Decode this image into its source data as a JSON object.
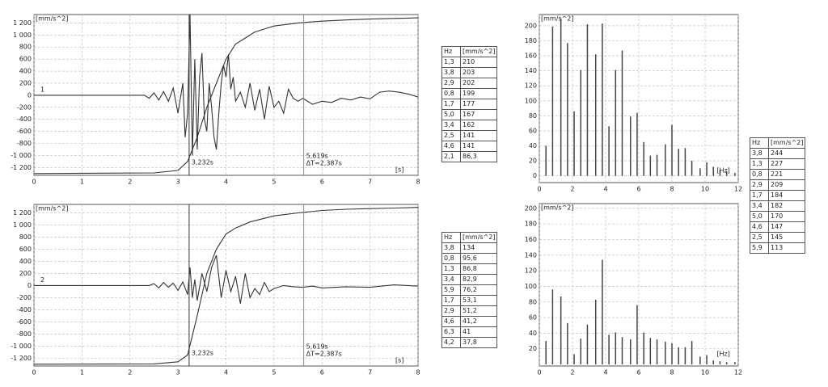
{
  "chart_data": [
    {
      "type": "line",
      "y_unit": "[mm/s^2]",
      "x_unit": "[s]",
      "channel_label": "1",
      "xlim": [
        0,
        8
      ],
      "xticks": [
        0,
        1,
        2,
        3,
        4,
        5,
        6,
        7,
        8
      ],
      "ylim": [
        -1330,
        1340
      ],
      "yticks": [
        {
          "value": -1200,
          "label": "-1 200"
        },
        {
          "value": -1000,
          "label": "-1 000"
        },
        -800,
        -600,
        -400,
        -200,
        0,
        200,
        400,
        600,
        800,
        {
          "value": 1000,
          "label": "1 000"
        },
        {
          "value": 1200,
          "label": "1 200"
        }
      ],
      "grid": true,
      "cursors": [
        3.232,
        5.619
      ],
      "cursor_labels": [
        "3,232s",
        "5,619s",
        "ΔT=2,387s"
      ],
      "series": [
        {
          "color": "#333333",
          "x": [
            0,
            2.3,
            2.4,
            2.5,
            2.6,
            2.7,
            2.8,
            2.9,
            3.0,
            3.1,
            3.15,
            3.2,
            3.25,
            3.3,
            3.35,
            3.4,
            3.45,
            3.5,
            3.55,
            3.6,
            3.65,
            3.7,
            3.75,
            3.8,
            3.85,
            3.9,
            3.95,
            4.0,
            4.05,
            4.1,
            4.15,
            4.2,
            4.3,
            4.4,
            4.5,
            4.6,
            4.7,
            4.8,
            4.9,
            5.0,
            5.1,
            5.2,
            5.3,
            5.4,
            5.5,
            5.6,
            5.8,
            6.0,
            6.2,
            6.4,
            6.6,
            6.8,
            7.0,
            7.2,
            7.4,
            7.6,
            7.8,
            8.0
          ],
          "values": [
            0,
            0,
            -50,
            40,
            -80,
            60,
            -100,
            120,
            -300,
            200,
            -700,
            -300,
            1340,
            -1000,
            600,
            -900,
            300,
            700,
            -400,
            -600,
            200,
            -200,
            -700,
            -900,
            -300,
            200,
            500,
            300,
            680,
            100,
            300,
            -100,
            50,
            -200,
            200,
            -250,
            100,
            -400,
            150,
            -200,
            -100,
            -300,
            100,
            -50,
            -100,
            -50,
            -150,
            -100,
            -120,
            -50,
            -80,
            -30,
            -60,
            50,
            70,
            50,
            20,
            -30
          ]
        },
        {
          "color": "#333333",
          "x": [
            0,
            2.5,
            3.0,
            3.2,
            3.4,
            3.6,
            3.8,
            4.0,
            4.2,
            4.4,
            4.6,
            4.8,
            5.0,
            5.5,
            6.0,
            6.5,
            7.0,
            7.5,
            8.0
          ],
          "values": [
            -1300,
            -1290,
            -1250,
            -1100,
            -700,
            -200,
            200,
            600,
            850,
            950,
            1050,
            1100,
            1150,
            1200,
            1230,
            1250,
            1265,
            1275,
            1285
          ]
        }
      ]
    },
    {
      "type": "line",
      "y_unit": "[mm/s^2]",
      "x_unit": "[s]",
      "channel_label": "2",
      "xlim": [
        0,
        8
      ],
      "xticks": [
        0,
        1,
        2,
        3,
        4,
        5,
        6,
        7,
        8
      ],
      "ylim": [
        -1330,
        1340
      ],
      "yticks": [
        {
          "value": -1200,
          "label": "-1 200"
        },
        {
          "value": -1000,
          "label": "-1 000"
        },
        -800,
        -600,
        -400,
        -200,
        0,
        200,
        400,
        600,
        800,
        {
          "value": 1000,
          "label": "1 000"
        },
        {
          "value": 1200,
          "label": "1 200"
        }
      ],
      "grid": true,
      "cursors": [
        3.232,
        5.619
      ],
      "cursor_labels": [
        "3,232s",
        "5,619s",
        "ΔT=2,387s"
      ],
      "series": [
        {
          "color": "#333333",
          "x": [
            0,
            2.4,
            2.5,
            2.6,
            2.7,
            2.8,
            2.9,
            3.0,
            3.1,
            3.2,
            3.25,
            3.3,
            3.35,
            3.4,
            3.5,
            3.6,
            3.7,
            3.8,
            3.9,
            4.0,
            4.1,
            4.2,
            4.3,
            4.4,
            4.5,
            4.6,
            4.7,
            4.8,
            4.9,
            5.0,
            5.2,
            5.4,
            5.6,
            5.8,
            6.0,
            6.5,
            7.0,
            7.5,
            8.0
          ],
          "values": [
            0,
            0,
            30,
            -40,
            50,
            -30,
            40,
            -80,
            60,
            -150,
            300,
            -200,
            100,
            -250,
            200,
            -100,
            300,
            500,
            -200,
            250,
            -100,
            150,
            -300,
            200,
            -200,
            -50,
            -150,
            50,
            -100,
            -50,
            0,
            -20,
            -30,
            -10,
            -40,
            -20,
            -30,
            10,
            -10
          ]
        },
        {
          "color": "#333333",
          "x": [
            0,
            2.5,
            3.0,
            3.2,
            3.4,
            3.6,
            3.8,
            4.0,
            4.2,
            4.5,
            5.0,
            5.5,
            6.0,
            6.5,
            7.0,
            7.5,
            8.0
          ],
          "values": [
            -1300,
            -1295,
            -1260,
            -1150,
            -500,
            200,
            600,
            850,
            950,
            1050,
            1150,
            1200,
            1240,
            1260,
            1270,
            1280,
            1290
          ]
        }
      ]
    },
    {
      "type": "bar",
      "y_unit": "[mm/s^2]",
      "x_unit": "[Hz]",
      "xlim": [
        0,
        12
      ],
      "xticks": [
        0,
        2,
        4,
        6,
        8,
        10,
        12
      ],
      "ylim": [
        -9,
        215
      ],
      "yticks": [
        0,
        20,
        40,
        60,
        80,
        100,
        120,
        140,
        160,
        180,
        200
      ],
      "grid": true,
      "color": "#444444",
      "x": [
        0.4,
        0.8,
        1.3,
        1.7,
        2.1,
        2.5,
        2.9,
        3.4,
        3.8,
        4.2,
        4.6,
        5.0,
        5.5,
        5.9,
        6.3,
        6.7,
        7.1,
        7.6,
        8.0,
        8.4,
        8.8,
        9.2,
        9.7,
        10.1,
        10.5,
        10.9,
        11.3,
        11.8
      ],
      "values": [
        40,
        199,
        210,
        177,
        86,
        141,
        202,
        162,
        203,
        66,
        141,
        167,
        79,
        84,
        45,
        27,
        28,
        42,
        68,
        36,
        37,
        20,
        10,
        18,
        12,
        8,
        6,
        4
      ]
    },
    {
      "type": "bar",
      "y_unit": "[mm/s^2]",
      "x_unit": "[Hz]",
      "xlim": [
        0,
        12
      ],
      "xticks": [
        0,
        2,
        4,
        6,
        8,
        10,
        12
      ],
      "ylim": [
        -2,
        206
      ],
      "yticks": [
        20,
        40,
        60,
        80,
        100,
        120,
        140,
        160,
        180,
        200
      ],
      "grid": true,
      "color": "#444444",
      "x": [
        0.4,
        0.8,
        1.3,
        1.7,
        2.1,
        2.5,
        2.9,
        3.4,
        3.8,
        4.2,
        4.6,
        5.0,
        5.5,
        5.9,
        6.3,
        6.7,
        7.1,
        7.6,
        8.0,
        8.4,
        8.8,
        9.2,
        9.7,
        10.1,
        10.5,
        10.9,
        11.3,
        11.8
      ],
      "values": [
        30,
        96,
        87,
        53,
        13,
        33,
        51,
        83,
        134,
        38,
        41,
        35,
        32,
        76,
        41,
        34,
        32,
        29,
        27,
        22,
        22,
        30,
        10,
        12,
        5,
        4,
        3,
        3
      ]
    }
  ],
  "tables": [
    {
      "header": [
        "Hz",
        "[mm/s^2]"
      ],
      "rows": [
        [
          "1,3",
          "210"
        ],
        [
          "3,8",
          "203"
        ],
        [
          "2,9",
          "202"
        ],
        [
          "0,8",
          "199"
        ],
        [
          "1,7",
          "177"
        ],
        [
          "5,0",
          "167"
        ],
        [
          "3,4",
          "162"
        ],
        [
          "2,5",
          "141"
        ],
        [
          "4,6",
          "141"
        ],
        [
          "2,1",
          "86,3"
        ]
      ]
    },
    {
      "header": [
        "Hz",
        "[mm/s^2]"
      ],
      "rows": [
        [
          "3,8",
          "134"
        ],
        [
          "0,8",
          "95,6"
        ],
        [
          "1,3",
          "86,8"
        ],
        [
          "3,4",
          "82,9"
        ],
        [
          "5,9",
          "76,2"
        ],
        [
          "1,7",
          "53,1"
        ],
        [
          "2,9",
          "51,2"
        ],
        [
          "4,6",
          "41,2"
        ],
        [
          "6,3",
          "41"
        ],
        [
          "4,2",
          "37,8"
        ]
      ]
    },
    {
      "header": [
        "Hz",
        "[mm/s^2]"
      ],
      "rows": [
        [
          "3,8",
          "244"
        ],
        [
          "1,3",
          "227"
        ],
        [
          "0,8",
          "221"
        ],
        [
          "2,9",
          "209"
        ],
        [
          "1,7",
          "184"
        ],
        [
          "3,4",
          "182"
        ],
        [
          "5,0",
          "170"
        ],
        [
          "4,6",
          "147"
        ],
        [
          "2,5",
          "145"
        ],
        [
          "5,9",
          "113"
        ]
      ]
    }
  ]
}
